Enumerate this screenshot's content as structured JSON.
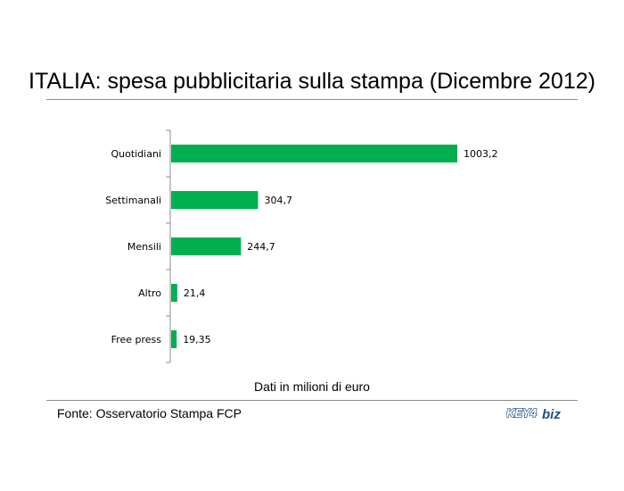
{
  "title": "ITALIA: spesa pubblicitaria sulla stampa (Dicembre 2012)",
  "note": "Dati in milioni di euro",
  "source": "Fonte: Osservatorio Stampa FCP",
  "logo": {
    "text_left": "KEY4",
    "text_right": "biz"
  },
  "colors": {
    "bar": "#00b050",
    "axis": "#8c8c8c",
    "rule": "#8c8c8c"
  },
  "chart_data": {
    "type": "bar",
    "orientation": "horizontal",
    "categories": [
      "Quotidiani",
      "Settimanali",
      "Mensili",
      "Altro",
      "Free press"
    ],
    "values": [
      1003.2,
      304.7,
      244.7,
      21.4,
      19.35
    ],
    "value_labels": [
      "1003,2",
      "304,7",
      "244,7",
      "21,4",
      "19,35"
    ],
    "title": "ITALIA: spesa pubblicitaria sulla stampa (Dicembre 2012)",
    "xlabel": "Dati in milioni di euro",
    "ylabel": "",
    "grid": false,
    "legend": "none"
  }
}
